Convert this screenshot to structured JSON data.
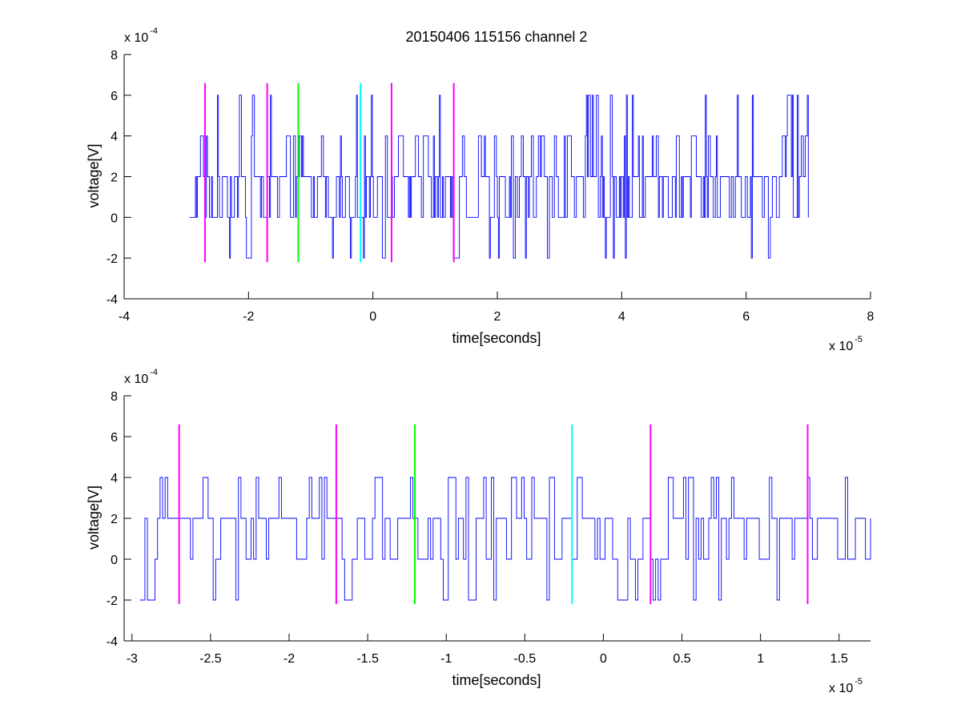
{
  "figure": {
    "title": "20150406 115156 channel 2"
  },
  "chart_data": [
    {
      "type": "line",
      "xlabel": "time[seconds]",
      "ylabel": "voltage[V]",
      "x_exponent_base": "x 10",
      "x_exponent_power": "-5",
      "y_exponent_base": "x 10",
      "y_exponent_power": "-4",
      "xlim": [
        -4,
        8
      ],
      "ylim": [
        -4,
        8
      ],
      "x_ticks": [
        -4,
        -2,
        0,
        2,
        4,
        6,
        8
      ],
      "y_ticks": [
        -4,
        -2,
        0,
        2,
        4,
        6,
        8
      ],
      "grid": false,
      "legend": "none",
      "signal": {
        "x_start": -2.95,
        "x_end": 7.0,
        "samples": 620,
        "levels": [
          -2,
          0,
          2,
          4,
          6
        ],
        "color": "#0000ff"
      },
      "markers": [
        {
          "x": -2.7,
          "y_from": -2.2,
          "y_to": 6.6,
          "color": "#ff00ff"
        },
        {
          "x": -1.7,
          "y_from": -2.2,
          "y_to": 6.6,
          "color": "#ff00ff"
        },
        {
          "x": -1.2,
          "y_from": -2.2,
          "y_to": 6.6,
          "color": "#00ff00"
        },
        {
          "x": -0.2,
          "y_from": -2.2,
          "y_to": 6.6,
          "color": "#00ffff"
        },
        {
          "x": 0.3,
          "y_from": -2.2,
          "y_to": 6.6,
          "color": "#ff00ff"
        },
        {
          "x": 1.3,
          "y_from": -2.2,
          "y_to": 6.6,
          "color": "#ff00ff"
        }
      ]
    },
    {
      "type": "line",
      "xlabel": "time[seconds]",
      "ylabel": "voltage[V]",
      "x_exponent_base": "x 10",
      "x_exponent_power": "-5",
      "y_exponent_base": "x 10",
      "y_exponent_power": "-4",
      "xlim": [
        -3.05,
        1.7
      ],
      "ylim": [
        -4,
        8
      ],
      "x_ticks": [
        -3,
        -2.5,
        -2,
        -1.5,
        -1,
        -0.5,
        0,
        0.5,
        1,
        1.5
      ],
      "y_ticks": [
        -4,
        -2,
        0,
        2,
        4,
        6,
        8
      ],
      "grid": false,
      "legend": "none",
      "signal": {
        "x_start": -2.95,
        "x_end": 1.7,
        "samples": 290,
        "levels": [
          -2,
          0,
          2,
          4
        ],
        "color": "#0000ff"
      },
      "markers": [
        {
          "x": -2.7,
          "y_from": -2.2,
          "y_to": 6.6,
          "color": "#ff00ff"
        },
        {
          "x": -1.7,
          "y_from": -2.2,
          "y_to": 6.6,
          "color": "#ff00ff"
        },
        {
          "x": -1.2,
          "y_from": -2.2,
          "y_to": 6.6,
          "color": "#00ff00"
        },
        {
          "x": -0.2,
          "y_from": -2.2,
          "y_to": 6.6,
          "color": "#00ffff"
        },
        {
          "x": 0.3,
          "y_from": -2.2,
          "y_to": 6.6,
          "color": "#ff00ff"
        },
        {
          "x": 1.3,
          "y_from": -2.2,
          "y_to": 6.6,
          "color": "#ff00ff"
        }
      ]
    }
  ]
}
